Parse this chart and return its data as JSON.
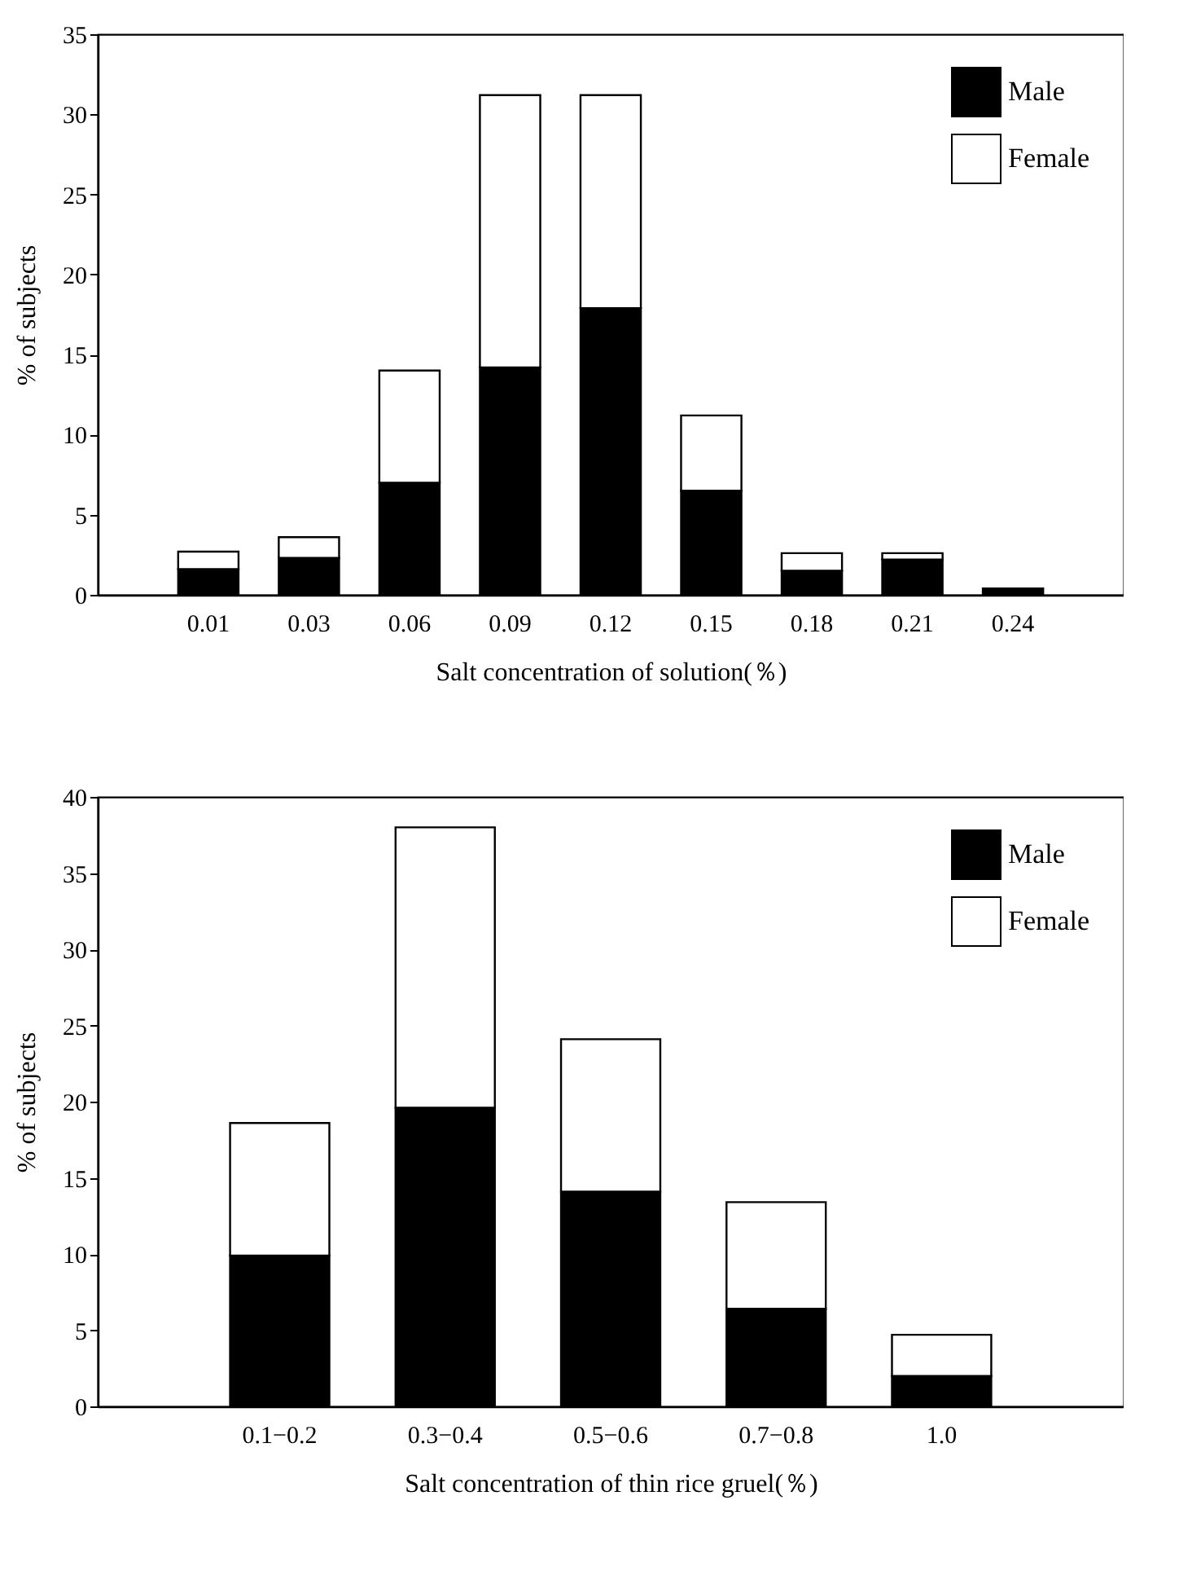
{
  "chart_data": [
    {
      "type": "bar",
      "stacked": true,
      "xlabel": "Salt concentration of solution(％)",
      "ylabel": "% of subjects",
      "categories": [
        "0.01",
        "0.03",
        "0.06",
        "0.09",
        "0.12",
        "0.15",
        "0.18",
        "0.21",
        "0.24"
      ],
      "ylim": [
        0,
        35
      ],
      "yticks": [
        0,
        5,
        10,
        15,
        20,
        25,
        30,
        35
      ],
      "legend": "top right",
      "series": [
        {
          "name": "Male",
          "color": "#000000",
          "values": [
            1.6,
            2.3,
            7.0,
            14.2,
            17.9,
            6.5,
            1.5,
            2.2,
            0.4
          ]
        },
        {
          "name": "Female",
          "color": "#ffffff",
          "values": [
            1.1,
            1.3,
            7.0,
            17.0,
            13.3,
            4.7,
            1.1,
            0.4,
            null
          ]
        }
      ]
    },
    {
      "type": "bar",
      "stacked": true,
      "xlabel": "Salt concentration of thin rice gruel(％)",
      "ylabel": "% of subjects",
      "categories": [
        "0.1−0.2",
        "0.3−0.4",
        "0.5−0.6",
        "0.7−0.8",
        "1.0"
      ],
      "ylim": [
        0,
        40
      ],
      "yticks": [
        0,
        5,
        10,
        15,
        20,
        25,
        30,
        35,
        40
      ],
      "legend": "top right",
      "series": [
        {
          "name": "Male",
          "color": "#000000",
          "values": [
            9.9,
            19.6,
            14.1,
            6.4,
            2.0
          ]
        },
        {
          "name": "Female",
          "color": "#ffffff",
          "values": [
            8.7,
            18.4,
            10.0,
            7.0,
            2.7
          ]
        }
      ]
    }
  ]
}
